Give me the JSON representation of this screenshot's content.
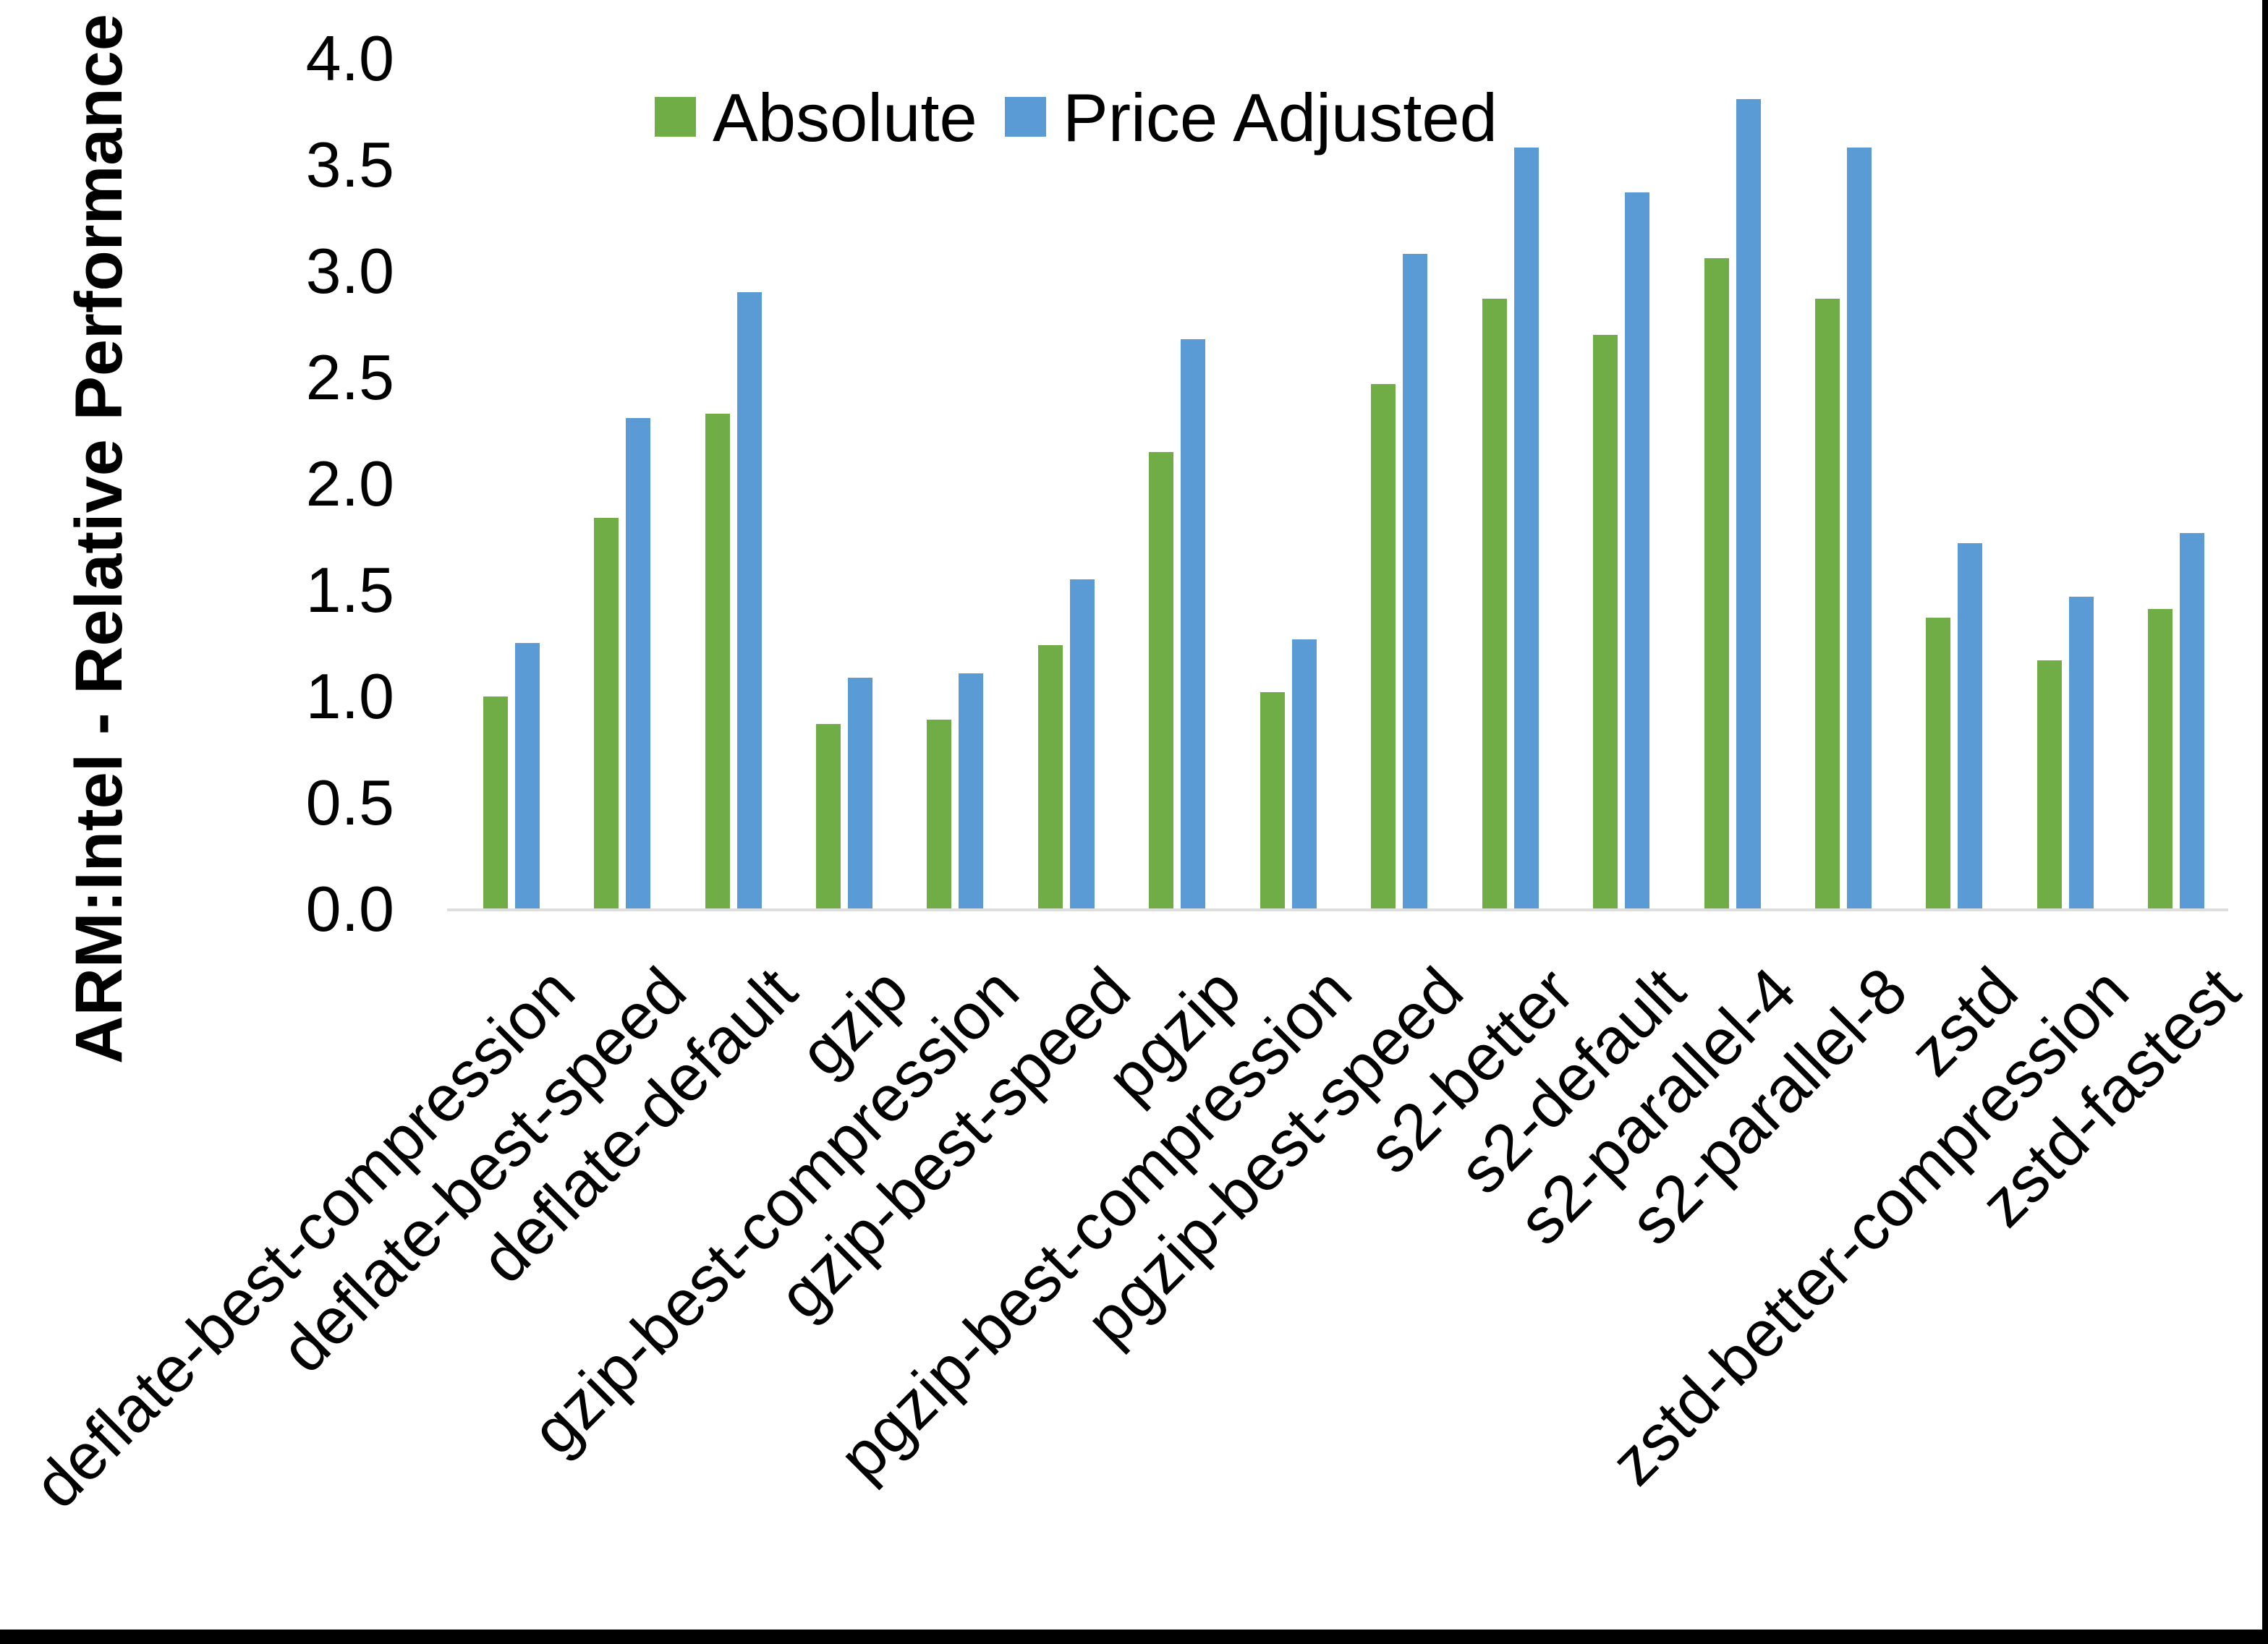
{
  "chart_data": {
    "type": "bar",
    "title": "",
    "xlabel": "",
    "ylabel": "ARM:Intel - Relative Performance",
    "ylim": [
      0.0,
      4.0
    ],
    "y_tick_step": 0.5,
    "y_ticks": [
      "0.0",
      "0.5",
      "1.0",
      "1.5",
      "2.0",
      "2.5",
      "3.0",
      "3.5",
      "4.0"
    ],
    "grid": false,
    "legend_position": "top-center",
    "categories": [
      "deflate-best-compression",
      "deflate-best-speed",
      "deflate-default",
      "gzip",
      "gzip-best-compression",
      "gzip-best-speed",
      "pgzip",
      "pgzip-best-compression",
      "pgzip-best-speed",
      "s2-better",
      "s2-default",
      "s2-parallel-4",
      "s2-parallel-8",
      "zstd",
      "zstd-better-compression",
      "zstd-fastest"
    ],
    "series": [
      {
        "name": "Absolute",
        "color": "#70AD47",
        "values": [
          1.0,
          1.84,
          2.33,
          0.87,
          0.89,
          1.24,
          2.15,
          1.02,
          2.47,
          2.87,
          2.7,
          3.06,
          2.87,
          1.37,
          1.17,
          1.41
        ]
      },
      {
        "name": "Price Adjusted",
        "color": "#5B9BD5",
        "values": [
          1.25,
          2.31,
          2.9,
          1.09,
          1.11,
          1.55,
          2.68,
          1.27,
          3.08,
          3.58,
          3.37,
          3.81,
          3.58,
          1.72,
          1.47,
          1.77
        ]
      }
    ]
  },
  "colors": {
    "background": "#FFFFFF",
    "axis_line": "#DEDEDE",
    "text": "#000000",
    "frame": "#000000"
  }
}
